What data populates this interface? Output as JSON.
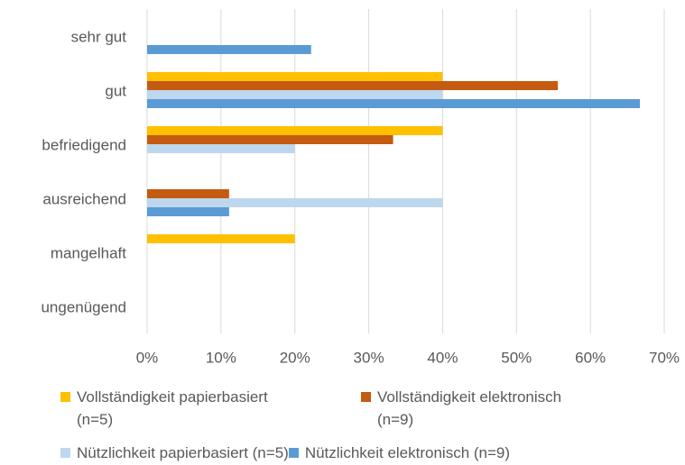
{
  "chart_data": {
    "type": "hbar",
    "categories": [
      "sehr gut",
      "gut",
      "befriedigend",
      "ausreichend",
      "mangelhaft",
      "ungenügend"
    ],
    "series": [
      {
        "name": "Vollständigkeit papierbasiert (n=5)",
        "color": "#ffc000",
        "values": [
          0,
          40,
          40,
          0,
          20,
          0
        ]
      },
      {
        "name": "Vollständigkeit elektronisch (n=9)",
        "color": "#c55a11",
        "values": [
          0,
          55.6,
          33.3,
          11.1,
          0,
          0
        ]
      },
      {
        "name": "Nützlichkeit papierbasiert (n=5)",
        "color": "#bdd7ee",
        "values": [
          0,
          40,
          20,
          40,
          0,
          0
        ]
      },
      {
        "name": "Nützlichkeit elektronisch (n=9)",
        "color": "#5b9bd5",
        "values": [
          22.2,
          66.7,
          0,
          11.1,
          0,
          0
        ]
      }
    ],
    "xlim": [
      0,
      70
    ],
    "xticks": [
      {
        "value": 0,
        "label": "0%"
      },
      {
        "value": 10,
        "label": "10%"
      },
      {
        "value": 20,
        "label": "20%"
      },
      {
        "value": 30,
        "label": "30%"
      },
      {
        "value": 40,
        "label": "40%"
      },
      {
        "value": 50,
        "label": "50%"
      },
      {
        "value": 60,
        "label": "60%"
      },
      {
        "value": 70,
        "label": "70%"
      }
    ],
    "grid": true,
    "legend": "bottom"
  }
}
